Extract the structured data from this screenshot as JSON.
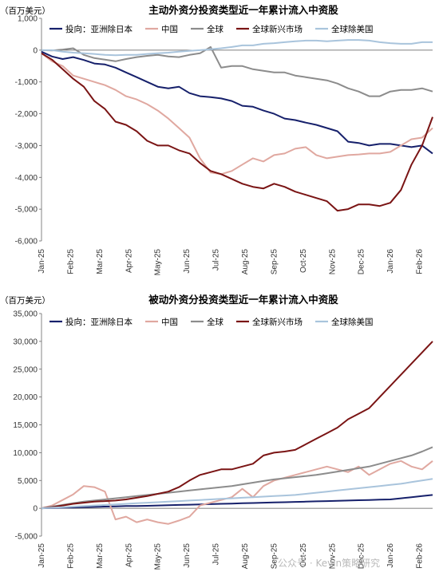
{
  "chart_data": [
    {
      "type": "line",
      "title": "主动外资分投资类型近一年累计流入中资股",
      "unit_label": "（百万美元）",
      "ylim": [
        -6000,
        1000
      ],
      "yticks": [
        1000,
        0,
        -1000,
        -2000,
        -3000,
        -4000,
        -5000,
        -6000
      ],
      "ytick_labels": [
        "1,000",
        "0",
        "-1,000",
        "-2,000",
        "-3,000",
        "-4,000",
        "-5,000",
        "-6,000"
      ],
      "x_tick_labels": [
        "Jan-25",
        "Feb-25",
        "Mar-25",
        "Apr-25",
        "May-25",
        "Jun-25",
        "Jul-25",
        "Aug-25",
        "Sep-25",
        "Oct-25",
        "Nov-25",
        "Dec-25",
        "Jan-26",
        "Feb-26"
      ],
      "series": [
        {
          "name": "投向：亚洲除日本",
          "color": "#16206b",
          "values": [
            -50,
            -200,
            -280,
            -220,
            -310,
            -420,
            -450,
            -550,
            -700,
            -850,
            -1000,
            -1150,
            -1200,
            -1150,
            -1350,
            -1450,
            -1480,
            -1520,
            -1600,
            -1750,
            -1780,
            -1900,
            -2000,
            -2150,
            -2200,
            -2280,
            -2350,
            -2450,
            -2550,
            -2880,
            -2920,
            -3000,
            -2950,
            -2950,
            -3000,
            -3050,
            -3000,
            -3250
          ]
        },
        {
          "name": "中国",
          "color": "#e0a8a0",
          "values": [
            -100,
            -350,
            -500,
            -800,
            -900,
            -1000,
            -1100,
            -1250,
            -1450,
            -1550,
            -1700,
            -1900,
            -2150,
            -2450,
            -2750,
            -3400,
            -3850,
            -3900,
            -3800,
            -3600,
            -3400,
            -3500,
            -3300,
            -3250,
            -3100,
            -3050,
            -3300,
            -3400,
            -3350,
            -3300,
            -3280,
            -3250,
            -3250,
            -3200,
            -3000,
            -2800,
            -2750,
            -2450
          ]
        },
        {
          "name": "全球",
          "color": "#8c8c8c",
          "values": [
            0,
            -10,
            20,
            60,
            -150,
            -250,
            -300,
            -350,
            -280,
            -220,
            -180,
            -150,
            -200,
            -220,
            -150,
            -100,
            100,
            -550,
            -500,
            -500,
            -600,
            -650,
            -700,
            -700,
            -800,
            -850,
            -900,
            -950,
            -1050,
            -1200,
            -1300,
            -1450,
            -1450,
            -1300,
            -1250,
            -1250,
            -1200,
            -1300
          ]
        },
        {
          "name": "全球新兴市场",
          "color": "#7a1414",
          "values": [
            -100,
            -300,
            -600,
            -900,
            -1150,
            -1600,
            -1850,
            -2250,
            -2350,
            -2550,
            -2850,
            -3000,
            -3000,
            -3150,
            -3250,
            -3550,
            -3800,
            -3900,
            -4050,
            -4200,
            -4300,
            -4350,
            -4200,
            -4300,
            -4450,
            -4550,
            -4650,
            -4750,
            -5050,
            -5000,
            -4850,
            -4850,
            -4900,
            -4800,
            -4400,
            -3600,
            -3000,
            -2100
          ]
        },
        {
          "name": "全球除美国",
          "color": "#a9c4dc",
          "values": [
            0,
            0,
            -50,
            -80,
            -100,
            -120,
            -150,
            -160,
            -150,
            -150,
            -120,
            -100,
            -80,
            -50,
            -20,
            0,
            30,
            60,
            100,
            150,
            150,
            200,
            220,
            250,
            280,
            300,
            300,
            280,
            300,
            320,
            320,
            300,
            250,
            220,
            200,
            200,
            250,
            250
          ]
        }
      ]
    },
    {
      "type": "line",
      "title": "被动外资分投资类型近一年累计流入中资股",
      "unit_label": "（百万美元）",
      "ylim": [
        -5000,
        35000
      ],
      "yticks": [
        35000,
        30000,
        25000,
        20000,
        15000,
        10000,
        5000,
        0,
        -5000
      ],
      "ytick_labels": [
        "35,000",
        "30,000",
        "25,000",
        "20,000",
        "15,000",
        "10,000",
        "5,000",
        "0",
        "-5,000"
      ],
      "x_tick_labels": [
        "Jan-25",
        "Feb-25",
        "Mar-25",
        "Apr-25",
        "May-25",
        "Jun-25",
        "Jul-25",
        "Aug-25",
        "Sep-25",
        "Oct-25",
        "Nov-25",
        "Dec-25",
        "Jan-26",
        "Feb-26"
      ],
      "series": [
        {
          "name": "投向：亚洲除日本",
          "color": "#16206b",
          "values": [
            0,
            50,
            100,
            150,
            200,
            250,
            300,
            350,
            400,
            420,
            450,
            500,
            550,
            600,
            650,
            700,
            750,
            800,
            850,
            900,
            950,
            1000,
            1050,
            1100,
            1150,
            1200,
            1250,
            1300,
            1350,
            1400,
            1450,
            1500,
            1550,
            1600,
            1800,
            2000,
            2200,
            2400
          ]
        },
        {
          "name": "中国",
          "color": "#e0a8a0",
          "values": [
            0,
            500,
            1500,
            2500,
            4000,
            3800,
            3000,
            -2000,
            -1500,
            -2500,
            -2000,
            -2500,
            -2800,
            -2200,
            -1500,
            500,
            1000,
            1500,
            2000,
            3500,
            2000,
            4000,
            5000,
            5500,
            6000,
            6500,
            7000,
            7500,
            7000,
            6500,
            7500,
            6000,
            7000,
            8000,
            8500,
            7500,
            7000,
            8500
          ]
        },
        {
          "name": "全球",
          "color": "#8c8c8c",
          "values": [
            0,
            300,
            600,
            900,
            1200,
            1400,
            1600,
            1800,
            2000,
            2200,
            2400,
            2600,
            2800,
            3000,
            3200,
            3400,
            3600,
            3800,
            4000,
            4300,
            4600,
            4900,
            5200,
            5400,
            5600,
            5800,
            6000,
            6300,
            6600,
            6900,
            7200,
            7500,
            8000,
            8500,
            9000,
            9500,
            10200,
            11000
          ]
        },
        {
          "name": "全球新兴市场",
          "color": "#7a1414",
          "values": [
            0,
            200,
            500,
            800,
            1000,
            1200,
            1300,
            1400,
            1600,
            1900,
            2200,
            2600,
            3000,
            3800,
            5000,
            6000,
            6500,
            7000,
            7000,
            7500,
            8000,
            9500,
            10000,
            10200,
            10500,
            11500,
            12500,
            13500,
            14500,
            16000,
            17000,
            18000,
            20000,
            22000,
            24000,
            26000,
            28000,
            30000
          ]
        },
        {
          "name": "全球除美国",
          "color": "#a9c4dc",
          "values": [
            0,
            100,
            200,
            300,
            400,
            500,
            600,
            700,
            800,
            900,
            1000,
            1100,
            1200,
            1300,
            1400,
            1500,
            1600,
            1700,
            1800,
            1900,
            2000,
            2100,
            2200,
            2300,
            2400,
            2600,
            2800,
            3000,
            3200,
            3400,
            3600,
            3800,
            4000,
            4200,
            4400,
            4700,
            5000,
            5300
          ]
        }
      ]
    }
  ],
  "watermark": "公众号 · Kevin策略研究"
}
